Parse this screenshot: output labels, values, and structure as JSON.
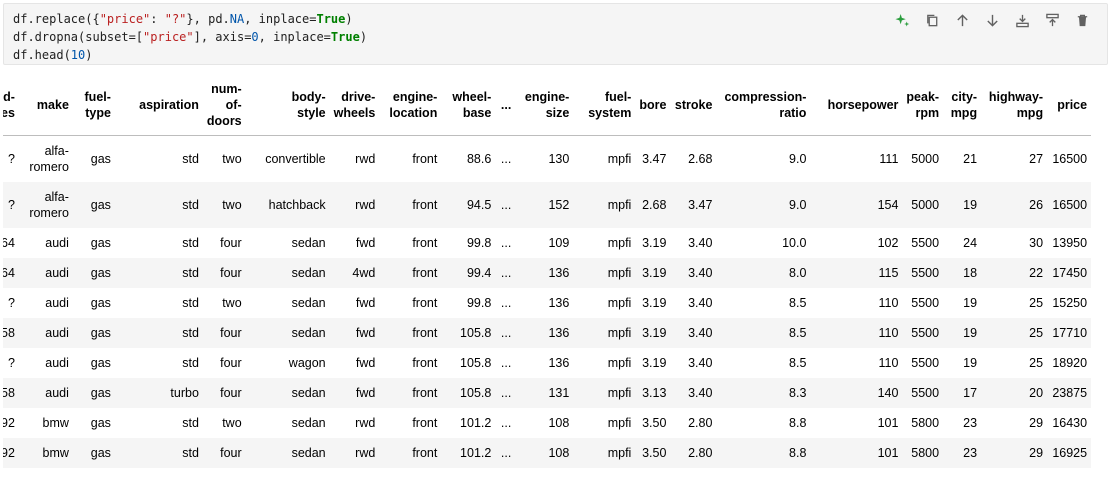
{
  "code_cell": {
    "lines": [
      "df.replace({\"price\": \"?\"}, pd.NA, inplace=True)",
      "df.dropna(subset=[\"price\"], axis=0, inplace=True)",
      "df.head(10)"
    ],
    "toolbar": [
      {
        "name": "ai-generate-icon",
        "color": "#2a9d3d"
      },
      {
        "name": "copy-icon"
      },
      {
        "name": "move-up-icon"
      },
      {
        "name": "move-down-icon"
      },
      {
        "name": "insert-above-icon"
      },
      {
        "name": "insert-below-icon"
      },
      {
        "name": "delete-icon"
      }
    ]
  },
  "table": {
    "headers": [
      "d-\nes",
      "make",
      "fuel-\ntype",
      "aspiration",
      "num-\nof-\ndoors",
      "body-\nstyle",
      "drive-\nwheels",
      "engine-\nlocation",
      "wheel-\nbase",
      "...",
      "engine-\nsize",
      "fuel-\nsystem",
      "bore",
      "stroke",
      "compression-\nratio",
      "horsepower",
      "peak-\nrpm",
      "city-\nmpg",
      "highway-\nmpg",
      "price"
    ],
    "rows": [
      [
        "?",
        "alfa-\nromero",
        "gas",
        "std",
        "two",
        "convertible",
        "rwd",
        "front",
        "88.6",
        "...",
        "130",
        "mpfi",
        "3.47",
        "2.68",
        "9.0",
        "111",
        "5000",
        "21",
        "27",
        "16500"
      ],
      [
        "?",
        "alfa-\nromero",
        "gas",
        "std",
        "two",
        "hatchback",
        "rwd",
        "front",
        "94.5",
        "...",
        "152",
        "mpfi",
        "2.68",
        "3.47",
        "9.0",
        "154",
        "5000",
        "19",
        "26",
        "16500"
      ],
      [
        "64",
        "audi",
        "gas",
        "std",
        "four",
        "sedan",
        "fwd",
        "front",
        "99.8",
        "...",
        "109",
        "mpfi",
        "3.19",
        "3.40",
        "10.0",
        "102",
        "5500",
        "24",
        "30",
        "13950"
      ],
      [
        "64",
        "audi",
        "gas",
        "std",
        "four",
        "sedan",
        "4wd",
        "front",
        "99.4",
        "...",
        "136",
        "mpfi",
        "3.19",
        "3.40",
        "8.0",
        "115",
        "5500",
        "18",
        "22",
        "17450"
      ],
      [
        "?",
        "audi",
        "gas",
        "std",
        "two",
        "sedan",
        "fwd",
        "front",
        "99.8",
        "...",
        "136",
        "mpfi",
        "3.19",
        "3.40",
        "8.5",
        "110",
        "5500",
        "19",
        "25",
        "15250"
      ],
      [
        "58",
        "audi",
        "gas",
        "std",
        "four",
        "sedan",
        "fwd",
        "front",
        "105.8",
        "...",
        "136",
        "mpfi",
        "3.19",
        "3.40",
        "8.5",
        "110",
        "5500",
        "19",
        "25",
        "17710"
      ],
      [
        "?",
        "audi",
        "gas",
        "std",
        "four",
        "wagon",
        "fwd",
        "front",
        "105.8",
        "...",
        "136",
        "mpfi",
        "3.19",
        "3.40",
        "8.5",
        "110",
        "5500",
        "19",
        "25",
        "18920"
      ],
      [
        "58",
        "audi",
        "gas",
        "turbo",
        "four",
        "sedan",
        "fwd",
        "front",
        "105.8",
        "...",
        "131",
        "mpfi",
        "3.13",
        "3.40",
        "8.3",
        "140",
        "5500",
        "17",
        "20",
        "23875"
      ],
      [
        "92",
        "bmw",
        "gas",
        "std",
        "two",
        "sedan",
        "rwd",
        "front",
        "101.2",
        "...",
        "108",
        "mpfi",
        "3.50",
        "2.80",
        "8.8",
        "101",
        "5800",
        "23",
        "29",
        "16430"
      ],
      [
        "92",
        "bmw",
        "gas",
        "std",
        "four",
        "sedan",
        "rwd",
        "front",
        "101.2",
        "...",
        "108",
        "mpfi",
        "3.50",
        "2.80",
        "8.8",
        "101",
        "5800",
        "23",
        "29",
        "16925"
      ]
    ]
  }
}
